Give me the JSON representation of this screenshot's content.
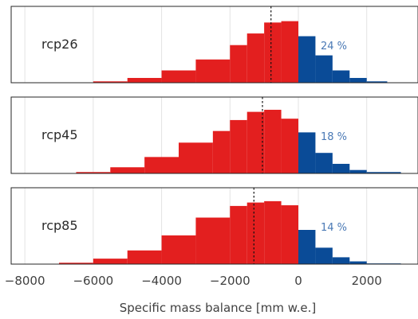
{
  "chart_data": {
    "type": "bar",
    "subtype": "histogram",
    "xlabel": "Specific mass balance [mm w.e.]",
    "xlim": [
      -8400,
      3500
    ],
    "xticks": [
      -8000,
      -6000,
      -4000,
      -2000,
      0,
      2000
    ],
    "xtick_labels": [
      "−8000",
      "−6000",
      "−4000",
      "−2000",
      "0",
      "2000"
    ],
    "grid": true,
    "negative_color": "#e31f1f",
    "positive_color": "#0a4b97",
    "percent_color": "#4a79b5",
    "panels": [
      {
        "label": "rcp26",
        "percent_label": "24 %",
        "positive_share": 0.24,
        "mean": -800,
        "bins": [
          {
            "start": -6000,
            "end": -5000,
            "height": 0.02
          },
          {
            "start": -5000,
            "end": -4000,
            "height": 0.07
          },
          {
            "start": -4000,
            "end": -3000,
            "height": 0.18
          },
          {
            "start": -3000,
            "end": -2000,
            "height": 0.34
          },
          {
            "start": -2000,
            "end": -1500,
            "height": 0.55
          },
          {
            "start": -1500,
            "end": -1000,
            "height": 0.72
          },
          {
            "start": -1000,
            "end": -500,
            "height": 0.88
          },
          {
            "start": -500,
            "end": 0,
            "height": 0.9
          },
          {
            "start": 0,
            "end": 500,
            "height": 0.68
          },
          {
            "start": 500,
            "end": 1000,
            "height": 0.4
          },
          {
            "start": 1000,
            "end": 1500,
            "height": 0.18
          },
          {
            "start": 1500,
            "end": 2000,
            "height": 0.07
          },
          {
            "start": 2000,
            "end": 2600,
            "height": 0.02
          }
        ]
      },
      {
        "label": "rcp45",
        "percent_label": "18 %",
        "positive_share": 0.18,
        "mean": -1050,
        "bins": [
          {
            "start": -6500,
            "end": -5500,
            "height": 0.02
          },
          {
            "start": -5500,
            "end": -4500,
            "height": 0.09
          },
          {
            "start": -4500,
            "end": -3500,
            "height": 0.24
          },
          {
            "start": -3500,
            "end": -2500,
            "height": 0.45
          },
          {
            "start": -2500,
            "end": -2000,
            "height": 0.62
          },
          {
            "start": -2000,
            "end": -1500,
            "height": 0.78
          },
          {
            "start": -1500,
            "end": -1000,
            "height": 0.9
          },
          {
            "start": -1000,
            "end": -500,
            "height": 0.93
          },
          {
            "start": -500,
            "end": 0,
            "height": 0.8
          },
          {
            "start": 0,
            "end": 500,
            "height": 0.6
          },
          {
            "start": 500,
            "end": 1000,
            "height": 0.3
          },
          {
            "start": 1000,
            "end": 1500,
            "height": 0.14
          },
          {
            "start": 1500,
            "end": 2000,
            "height": 0.05
          },
          {
            "start": 2000,
            "end": 3000,
            "height": 0.02
          }
        ]
      },
      {
        "label": "rcp85",
        "percent_label": "14 %",
        "positive_share": 0.14,
        "mean": -1300,
        "bins": [
          {
            "start": -7000,
            "end": -6000,
            "height": 0.02
          },
          {
            "start": -6000,
            "end": -5000,
            "height": 0.08
          },
          {
            "start": -5000,
            "end": -4000,
            "height": 0.2
          },
          {
            "start": -4000,
            "end": -3000,
            "height": 0.42
          },
          {
            "start": -3000,
            "end": -2000,
            "height": 0.68
          },
          {
            "start": -2000,
            "end": -1500,
            "height": 0.85
          },
          {
            "start": -1500,
            "end": -1000,
            "height": 0.9
          },
          {
            "start": -1000,
            "end": -500,
            "height": 0.92
          },
          {
            "start": -500,
            "end": 0,
            "height": 0.86
          },
          {
            "start": 0,
            "end": 500,
            "height": 0.5
          },
          {
            "start": 500,
            "end": 1000,
            "height": 0.24
          },
          {
            "start": 1000,
            "end": 1500,
            "height": 0.1
          },
          {
            "start": 1500,
            "end": 2000,
            "height": 0.04
          },
          {
            "start": 2000,
            "end": 3000,
            "height": 0.01
          }
        ]
      }
    ]
  }
}
